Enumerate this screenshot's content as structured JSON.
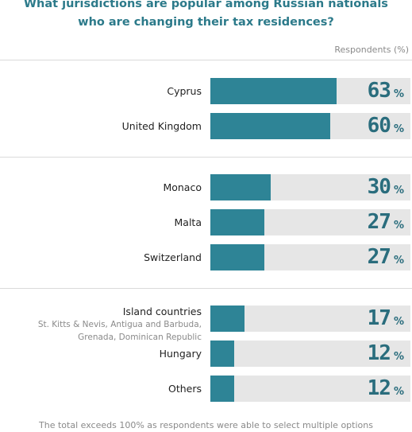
{
  "chart_data": {
    "type": "bar",
    "orientation": "horizontal",
    "title": "What jurisdictions are popular among Russian nationals who are changing their tax residences?",
    "title_lines": [
      "What jurisdictions are popular among Russian nationals",
      "who are changing their tax residences?"
    ],
    "ylabel": "",
    "xlabel": "Respondents (%)",
    "unit": "%",
    "xlim": [
      0,
      100
    ],
    "groups": [
      [
        "Cyprus",
        "United Kingdom"
      ],
      [
        "Monaco",
        "Malta",
        "Switzerland"
      ],
      [
        "Island countries",
        "Hungary",
        "Others"
      ]
    ],
    "categories": [
      "Cyprus",
      "United Kingdom",
      "Monaco",
      "Malta",
      "Switzerland",
      "Island countries",
      "Hungary",
      "Others"
    ],
    "values": [
      63,
      60,
      30,
      27,
      27,
      17,
      12,
      12
    ],
    "sublabels": {
      "Island countries": [
        "St. Kitts & Nevis, Antigua and Barbuda,",
        "Grenada, Dominican Republic"
      ]
    },
    "colors": {
      "bar": "#2e8496",
      "track": "#e6e6e6",
      "value": "#2a6d7d",
      "title": "#2c7a8a"
    },
    "footnote": "The total exceeds 100% as respondents were able to select multiple options"
  }
}
